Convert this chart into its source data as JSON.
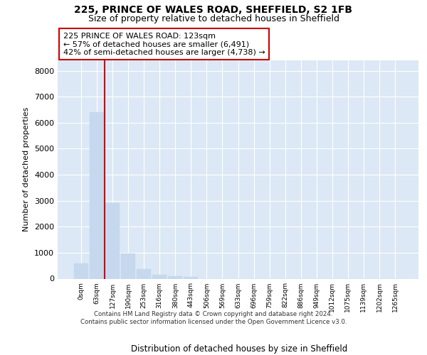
{
  "title1": "225, PRINCE OF WALES ROAD, SHEFFIELD, S2 1FB",
  "title2": "Size of property relative to detached houses in Sheffield",
  "xlabel": "Distribution of detached houses by size in Sheffield",
  "ylabel": "Number of detached properties",
  "bar_labels": [
    "0sqm",
    "63sqm",
    "127sqm",
    "190sqm",
    "253sqm",
    "316sqm",
    "380sqm",
    "443sqm",
    "506sqm",
    "569sqm",
    "633sqm",
    "696sqm",
    "759sqm",
    "822sqm",
    "886sqm",
    "949sqm",
    "1012sqm",
    "1075sqm",
    "1139sqm",
    "1202sqm",
    "1265sqm"
  ],
  "bar_values": [
    600,
    6400,
    2920,
    960,
    360,
    150,
    90,
    60,
    0,
    0,
    0,
    0,
    0,
    0,
    0,
    0,
    0,
    0,
    0,
    0,
    0
  ],
  "bar_color": "#c5d8ee",
  "bar_edge_color": "#c5d8ee",
  "vline_x": 1.5,
  "vline_color": "#cc0000",
  "annotation_text": "225 PRINCE OF WALES ROAD: 123sqm\n← 57% of detached houses are smaller (6,491)\n42% of semi-detached houses are larger (4,738) →",
  "ylim_max": 8400,
  "yticks": [
    0,
    1000,
    2000,
    3000,
    4000,
    5000,
    6000,
    7000,
    8000
  ],
  "footer": "Contains HM Land Registry data © Crown copyright and database right 2024.\nContains public sector information licensed under the Open Government Licence v3.0.",
  "fig_bg": "#ffffff",
  "plot_bg": "#dce8f5",
  "grid_color": "#ffffff"
}
